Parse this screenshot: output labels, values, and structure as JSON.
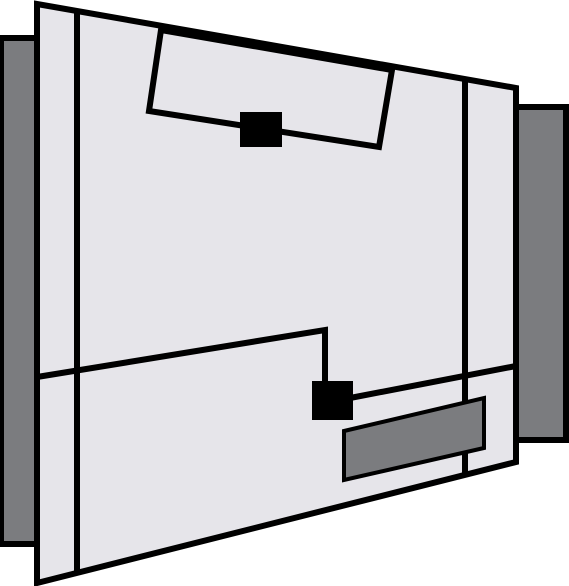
{
  "illustration": {
    "subject": "tapered-box-component",
    "colors": {
      "outline": "#000000",
      "body_fill": "#e6e5ea",
      "side_fill": "#7b7c7f",
      "slot_fill": "#7b7c7f",
      "connector_fill": "#000000"
    }
  }
}
